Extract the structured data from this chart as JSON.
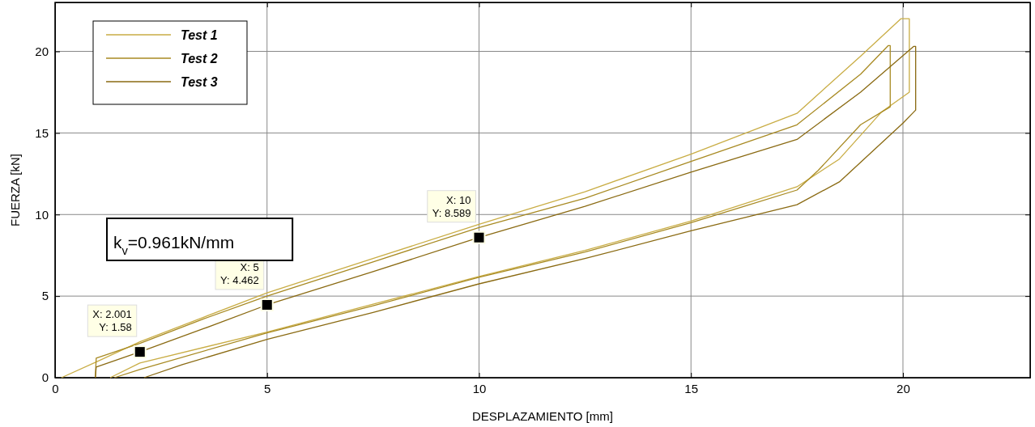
{
  "chart_data": {
    "type": "line",
    "xlabel": "DESPLAZAMIENTO [mm]",
    "ylabel": "FUERZA [kN]",
    "xlim": [
      0,
      23
    ],
    "xticks": [
      0,
      5,
      10,
      15,
      20
    ],
    "ylim": [
      0,
      23
    ],
    "yticks": [
      0,
      5,
      10,
      15,
      20
    ],
    "grid": true,
    "legend": "top left",
    "marker": "none",
    "line_style": "solid",
    "series": [
      {
        "name": "Test 1",
        "color": "#c9ad45",
        "x": [
          0.15,
          1,
          2,
          3.5,
          5,
          7.5,
          10,
          12.5,
          15,
          17.5,
          19,
          19.95,
          20.15,
          20.15,
          19.5,
          18.5,
          17.5,
          15,
          12.5,
          10,
          7.5,
          5,
          2,
          1.3
        ],
        "values": [
          0,
          1,
          2.2,
          3.7,
          5.2,
          7.3,
          9.4,
          11.4,
          13.7,
          16.2,
          19.7,
          22,
          22,
          17.5,
          16.3,
          13.4,
          11.7,
          9.6,
          7.8,
          6.2,
          4.5,
          2.8,
          0.9,
          0
        ]
      },
      {
        "name": "Test 2",
        "color": "#a88a22",
        "x": [
          0.95,
          0.97,
          2,
          3.5,
          5,
          7.5,
          10,
          12.5,
          15,
          17.5,
          19,
          19.65,
          19.7,
          19.7,
          19,
          18,
          17.5,
          15,
          12.5,
          10,
          7.5,
          5,
          2,
          1.4
        ],
        "values": [
          0,
          1.2,
          2.1,
          3.6,
          5,
          7.1,
          9.2,
          11,
          13.25,
          15.5,
          18.6,
          20.35,
          20.35,
          16.6,
          15.5,
          12.7,
          11.5,
          9.5,
          7.7,
          6.15,
          4.4,
          2.75,
          0.5,
          0
        ]
      },
      {
        "name": "Test 3",
        "color": "#8a6a12",
        "x": [
          0.95,
          0.97,
          2.001,
          3.5,
          5,
          7.5,
          10,
          12.5,
          15,
          17.5,
          19,
          20.25,
          20.3,
          20.3,
          20,
          18.5,
          17.5,
          15,
          12.5,
          10,
          7.5,
          5,
          3,
          2.1
        ],
        "values": [
          0,
          0.65,
          1.58,
          3,
          4.462,
          6.5,
          8.589,
          10.5,
          12.6,
          14.6,
          17.5,
          20.3,
          20.3,
          16.4,
          15.6,
          12,
          10.6,
          9,
          7.3,
          5.75,
          4,
          2.35,
          0.8,
          0
        ]
      }
    ],
    "annotations": [
      {
        "text": "X: 2.001\nY: 1.58",
        "x": 2.001,
        "y": 1.58
      },
      {
        "text": "X: 5\nY: 4.462",
        "x": 5,
        "y": 4.462
      },
      {
        "text": "X: 10\nY: 8.589",
        "x": 10,
        "y": 8.589
      },
      "k$_{v}$=0.961kN/mm"
    ]
  }
}
